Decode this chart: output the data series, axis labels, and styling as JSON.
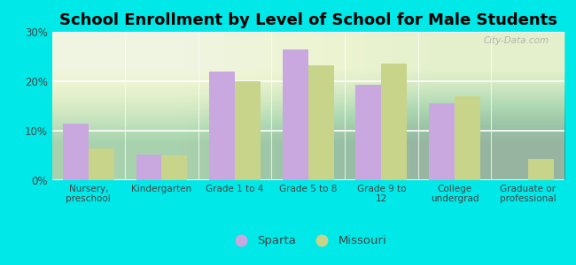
{
  "title": "School Enrollment by Level of School for Male Students",
  "categories": [
    "Nursery,\npreschool",
    "Kindergarten",
    "Grade 1 to 4",
    "Grade 5 to 8",
    "Grade 9 to\n12",
    "College\nundergrad",
    "Graduate or\nprofessional"
  ],
  "sparta_values": [
    11.5,
    5.2,
    22.0,
    26.5,
    19.2,
    15.5,
    0
  ],
  "missouri_values": [
    6.5,
    5.0,
    20.0,
    23.2,
    23.5,
    17.0,
    4.2
  ],
  "sparta_color": "#c9a8e0",
  "missouri_color": "#c8d48a",
  "background_color": "#00e8e8",
  "plot_bg_top": "#e8ede0",
  "plot_bg_bottom": "#d0e8d0",
  "ylim": [
    0,
    30
  ],
  "yticks": [
    0,
    10,
    20,
    30
  ],
  "ytick_labels": [
    "0%",
    "10%",
    "20%",
    "30%"
  ],
  "bar_width": 0.35,
  "legend_labels": [
    "Sparta",
    "Missouri"
  ],
  "title_fontsize": 13,
  "watermark": "City-Data.com"
}
